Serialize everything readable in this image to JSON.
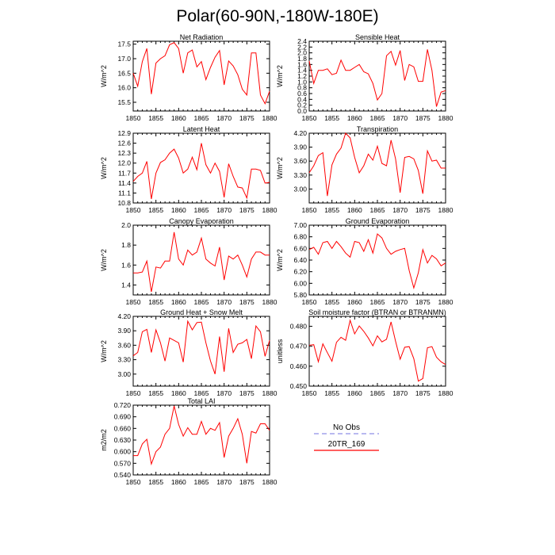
{
  "title": "Polar(60-90N,-180W-180E)",
  "colors": {
    "model": "#ff0000",
    "obs": "#8f8fe6",
    "axis": "#000000"
  },
  "legend": {
    "obs_label": "No Obs",
    "model_label": "20TR_169"
  },
  "chart_data": [
    {
      "type": "line",
      "title": "Net Radiation",
      "ylabel": "W/m^2",
      "x_start": 1850,
      "x_end": 1880,
      "xlim": [
        1850,
        1880
      ],
      "xticks": [
        "1850",
        "1855",
        "1860",
        "1865",
        "1870",
        "1875",
        "1880"
      ],
      "ylim": [
        15.2,
        17.6
      ],
      "yticks": [
        "15.5",
        "16.0",
        "16.5",
        "17.0",
        "17.5"
      ],
      "series": [
        {
          "name": "20TR_169",
          "values": [
            16.5,
            16.05,
            16.9,
            17.35,
            15.78,
            16.85,
            17.0,
            17.1,
            17.48,
            17.55,
            17.35,
            16.5,
            17.2,
            17.3,
            16.72,
            16.9,
            16.28,
            16.7,
            17.05,
            17.28,
            16.1,
            16.92,
            16.75,
            16.45,
            15.95,
            15.75,
            17.2,
            17.2,
            15.75,
            15.45,
            15.88
          ]
        }
      ]
    },
    {
      "type": "line",
      "title": "Sensible Heat",
      "ylabel": "W/m^2",
      "x_start": 1850,
      "x_end": 1880,
      "xlim": [
        1850,
        1880
      ],
      "xticks": [
        "1850",
        "1855",
        "1860",
        "1865",
        "1870",
        "1875",
        "1880"
      ],
      "ylim": [
        0.0,
        2.4
      ],
      "yticks": [
        "0.0",
        "0.2",
        "0.4",
        "0.6",
        "0.8",
        "1.0",
        "1.2",
        "1.4",
        "1.6",
        "1.8",
        "2.0",
        "2.2",
        "2.4"
      ],
      "series": [
        {
          "name": "20TR_169",
          "values": [
            1.72,
            0.95,
            1.4,
            1.4,
            1.45,
            1.25,
            1.3,
            1.75,
            1.4,
            1.4,
            1.5,
            1.6,
            1.35,
            1.28,
            0.95,
            0.38,
            0.6,
            1.9,
            2.05,
            1.58,
            2.08,
            1.05,
            1.6,
            1.52,
            1.02,
            1.02,
            2.12,
            1.4,
            0.15,
            0.65,
            0.7
          ]
        }
      ]
    },
    {
      "type": "line",
      "title": "Latent Heat",
      "ylabel": "W/m^2",
      "x_start": 1850,
      "x_end": 1880,
      "xlim": [
        1850,
        1880
      ],
      "xticks": [
        "1850",
        "1855",
        "1860",
        "1865",
        "1870",
        "1875",
        "1880"
      ],
      "ylim": [
        10.8,
        12.9
      ],
      "yticks": [
        "10.8",
        "11.1",
        "11.4",
        "11.7",
        "12.0",
        "12.3",
        "12.6",
        "12.9"
      ],
      "series": [
        {
          "name": "20TR_169",
          "values": [
            11.45,
            11.6,
            11.7,
            12.05,
            10.92,
            11.7,
            12.02,
            12.1,
            12.3,
            12.42,
            12.15,
            11.7,
            11.82,
            12.18,
            11.8,
            12.6,
            11.95,
            11.7,
            12.0,
            11.75,
            10.97,
            11.98,
            11.6,
            11.28,
            11.25,
            10.95,
            11.82,
            11.82,
            11.78,
            11.4,
            11.42
          ]
        }
      ]
    },
    {
      "type": "line",
      "title": "Transpiration",
      "ylabel": "W/m^2",
      "x_start": 1850,
      "x_end": 1880,
      "xlim": [
        1850,
        1880
      ],
      "xticks": [
        "1850",
        "1855",
        "1860",
        "1865",
        "1870",
        "1875",
        "1880"
      ],
      "ylim": [
        2.7,
        4.2
      ],
      "yticks": [
        "3.00",
        "3.30",
        "3.60",
        "3.90",
        "4.20"
      ],
      "series": [
        {
          "name": "20TR_169",
          "values": [
            3.35,
            3.5,
            3.72,
            3.78,
            2.85,
            3.52,
            3.75,
            3.88,
            4.2,
            4.1,
            3.68,
            3.35,
            3.5,
            3.75,
            3.62,
            3.92,
            3.55,
            3.5,
            4.05,
            3.65,
            2.92,
            3.68,
            3.7,
            3.65,
            3.4,
            2.9,
            3.82,
            3.6,
            3.62,
            3.45,
            3.45
          ]
        }
      ]
    },
    {
      "type": "line",
      "title": "Canopy Evaporation",
      "ylabel": "W/m^2",
      "x_start": 1850,
      "x_end": 1880,
      "xlim": [
        1850,
        1880
      ],
      "xticks": [
        "1850",
        "1855",
        "1860",
        "1865",
        "1870",
        "1875",
        "1880"
      ],
      "ylim": [
        1.3,
        2.0
      ],
      "yticks": [
        "1.4",
        "1.6",
        "1.8",
        "2.0"
      ],
      "series": [
        {
          "name": "20TR_169",
          "values": [
            1.52,
            1.52,
            1.53,
            1.64,
            1.33,
            1.58,
            1.57,
            1.64,
            1.64,
            1.93,
            1.66,
            1.6,
            1.75,
            1.7,
            1.73,
            1.87,
            1.66,
            1.62,
            1.59,
            1.78,
            1.45,
            1.69,
            1.66,
            1.7,
            1.6,
            1.48,
            1.66,
            1.73,
            1.73,
            1.7,
            1.7
          ]
        }
      ]
    },
    {
      "type": "line",
      "title": "Ground Evaporation",
      "ylabel": "W/m^2",
      "x_start": 1850,
      "x_end": 1880,
      "xlim": [
        1850,
        1880
      ],
      "xticks": [
        "1850",
        "1855",
        "1860",
        "1865",
        "1870",
        "1875",
        "1880"
      ],
      "ylim": [
        5.8,
        7.0
      ],
      "yticks": [
        "5.80",
        "6.00",
        "6.20",
        "6.40",
        "6.60",
        "6.80",
        "7.00"
      ],
      "series": [
        {
          "name": "20TR_169",
          "values": [
            6.58,
            6.62,
            6.5,
            6.7,
            6.72,
            6.6,
            6.72,
            6.63,
            6.52,
            6.45,
            6.72,
            6.7,
            6.55,
            6.75,
            6.52,
            6.85,
            6.78,
            6.6,
            6.5,
            6.55,
            6.58,
            6.6,
            6.22,
            5.92,
            6.18,
            6.58,
            6.35,
            6.48,
            6.42,
            6.3,
            6.35
          ]
        }
      ]
    },
    {
      "type": "line",
      "title": "Ground Heat + Snow Melt",
      "ylabel": "W/m^2",
      "x_start": 1850,
      "x_end": 1880,
      "xlim": [
        1850,
        1880
      ],
      "xticks": [
        "1850",
        "1855",
        "1860",
        "1865",
        "1870",
        "1875",
        "1880"
      ],
      "ylim": [
        2.75,
        4.2
      ],
      "yticks": [
        "3.00",
        "3.30",
        "3.60",
        "3.90",
        "4.20"
      ],
      "series": [
        {
          "name": "20TR_169",
          "values": [
            3.38,
            3.45,
            3.88,
            3.93,
            3.45,
            3.92,
            3.65,
            3.27,
            3.75,
            3.7,
            3.65,
            3.25,
            4.1,
            3.92,
            4.07,
            4.08,
            3.65,
            3.27,
            3.0,
            3.78,
            3.05,
            3.95,
            3.45,
            3.62,
            3.65,
            3.72,
            3.32,
            4.0,
            3.88,
            3.37,
            3.7
          ]
        }
      ]
    },
    {
      "type": "line",
      "title": "Soil moisture factor (BTRAN or BTRANMN)",
      "ylabel": "unitless",
      "x_start": 1850,
      "x_end": 1880,
      "xlim": [
        1850,
        1880
      ],
      "xticks": [
        "1850",
        "1855",
        "1860",
        "1865",
        "1870",
        "1875",
        "1880"
      ],
      "ylim": [
        0.45,
        0.485
      ],
      "yticks": [
        "0.450",
        "0.460",
        "0.470",
        "0.480"
      ],
      "series": [
        {
          "name": "20TR_169",
          "values": [
            0.4705,
            0.4708,
            0.4622,
            0.4712,
            0.4668,
            0.4625,
            0.472,
            0.4745,
            0.473,
            0.483,
            0.4762,
            0.4802,
            0.4775,
            0.4742,
            0.4702,
            0.4752,
            0.4722,
            0.4735,
            0.4822,
            0.4725,
            0.4635,
            0.4695,
            0.4698,
            0.4638,
            0.4525,
            0.4538,
            0.4692,
            0.4698,
            0.4645,
            0.4622,
            0.4608
          ]
        }
      ]
    },
    {
      "type": "line",
      "title": "Total LAI",
      "ylabel": "m2/m2",
      "x_start": 1850,
      "x_end": 1880,
      "xlim": [
        1850,
        1880
      ],
      "xticks": [
        "1850",
        "1855",
        "1860",
        "1865",
        "1870",
        "1875",
        "1880"
      ],
      "ylim": [
        0.54,
        0.72
      ],
      "yticks": [
        "0.540",
        "0.570",
        "0.600",
        "0.630",
        "0.660",
        "0.690",
        "0.720"
      ],
      "series": [
        {
          "name": "20TR_169",
          "values": [
            0.59,
            0.59,
            0.62,
            0.632,
            0.568,
            0.6,
            0.612,
            0.645,
            0.66,
            0.718,
            0.67,
            0.64,
            0.662,
            0.645,
            0.645,
            0.678,
            0.645,
            0.66,
            0.655,
            0.675,
            0.585,
            0.64,
            0.66,
            0.685,
            0.645,
            0.57,
            0.652,
            0.648,
            0.672,
            0.672,
            0.655
          ]
        }
      ]
    }
  ]
}
